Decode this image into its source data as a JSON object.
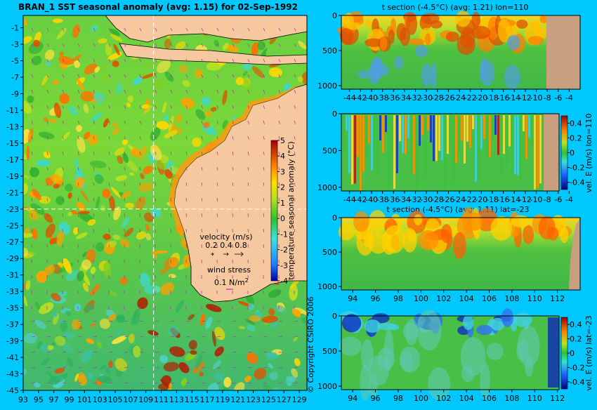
{
  "chart_data": [
    {
      "type": "heatmap",
      "title": "BRAN_1  SST seasonal anomaly (avg: 1.15) for 02-Sep-1992",
      "x_ticks": [
        "93",
        "95",
        "97",
        "99",
        "101",
        "103",
        "105",
        "107",
        "109",
        "111",
        "113",
        "115",
        "117",
        "119",
        "121",
        "123",
        "125",
        "127",
        "129"
      ],
      "y_ticks": [
        "-1",
        "-3",
        "-5",
        "-7",
        "-9",
        "-11",
        "-13",
        "-15",
        "-17",
        "-19",
        "-21",
        "-23",
        "-25",
        "-27",
        "-29",
        "-31",
        "-33",
        "-35",
        "-37",
        "-39",
        "-41",
        "-43",
        "-45"
      ],
      "xlim": [
        93,
        130
      ],
      "ylim": [
        -45,
        0.5
      ],
      "section_lines": {
        "lon": 110,
        "lat": -23
      },
      "colorbar": {
        "label": "temperature seasonal anomaly (°C)",
        "ticks": [
          "5",
          "4",
          "3",
          "2",
          "1",
          "0",
          "-1",
          "-2",
          "-3",
          "-4"
        ],
        "range": [
          -4,
          5
        ]
      },
      "velocity_legend": {
        "title": "velocity (m/s)",
        "values": "0.2 0.4 0.8"
      },
      "wind_legend": {
        "title": "wind stress",
        "value": "0.1 N/m",
        "exponent": "2"
      },
      "copyright": "© Copyright CSIRO 2006"
    },
    {
      "type": "heatmap",
      "title": "t section (-4.5°C) (avg: 1.21) lon=110",
      "x_ticks": [
        "-44",
        "-42",
        "-40",
        "-38",
        "-36",
        "-34",
        "-32",
        "-30",
        "-28",
        "-26",
        "-24",
        "-22",
        "-20",
        "-18",
        "-16",
        "-14",
        "-12",
        "-10",
        "-8",
        "-6",
        "-4"
      ],
      "y_ticks": [
        "0",
        "500",
        "1000"
      ],
      "xlim": [
        -45.5,
        -2
      ],
      "ylim": [
        1050,
        0
      ]
    },
    {
      "type": "heatmap",
      "x_ticks": [
        "-44",
        "-42",
        "-40",
        "-38",
        "-36",
        "-34",
        "-32",
        "-30",
        "-28",
        "-26",
        "-24",
        "-22",
        "-20",
        "-18",
        "-16",
        "-14",
        "-12",
        "-10",
        "-8",
        "-6",
        "-4"
      ],
      "y_ticks": [
        "0",
        "500",
        "1000"
      ],
      "xlim": [
        -45.5,
        -2
      ],
      "ylim": [
        1050,
        0
      ],
      "colorbar": {
        "label": "vel. E (m/s) lon=110",
        "ticks": [
          "0.4",
          "0.2",
          "0",
          "-0.2",
          "-0.4"
        ],
        "range": [
          -0.5,
          0.5
        ]
      }
    },
    {
      "type": "heatmap",
      "title": "t section (-4.5°C) (avg: 1.11) lat=-23",
      "x_ticks": [
        "94",
        "96",
        "98",
        "100",
        "102",
        "104",
        "106",
        "108",
        "110",
        "112"
      ],
      "y_ticks": [
        "0",
        "500",
        "1000"
      ],
      "xlim": [
        93,
        114
      ],
      "ylim": [
        1050,
        0
      ]
    },
    {
      "type": "heatmap",
      "x_ticks": [
        "94",
        "96",
        "98",
        "100",
        "102",
        "104",
        "106",
        "108",
        "110",
        "112"
      ],
      "y_ticks": [
        "0",
        "500",
        "1000"
      ],
      "xlim": [
        93,
        114
      ],
      "ylim": [
        1050,
        0
      ],
      "colorbar": {
        "label": "vel. E (m/s) lat=-23",
        "ticks": [
          "0.4",
          "0.2",
          "0",
          "-0.2",
          "-0.4"
        ],
        "range": [
          -0.5,
          0.5
        ]
      }
    }
  ]
}
